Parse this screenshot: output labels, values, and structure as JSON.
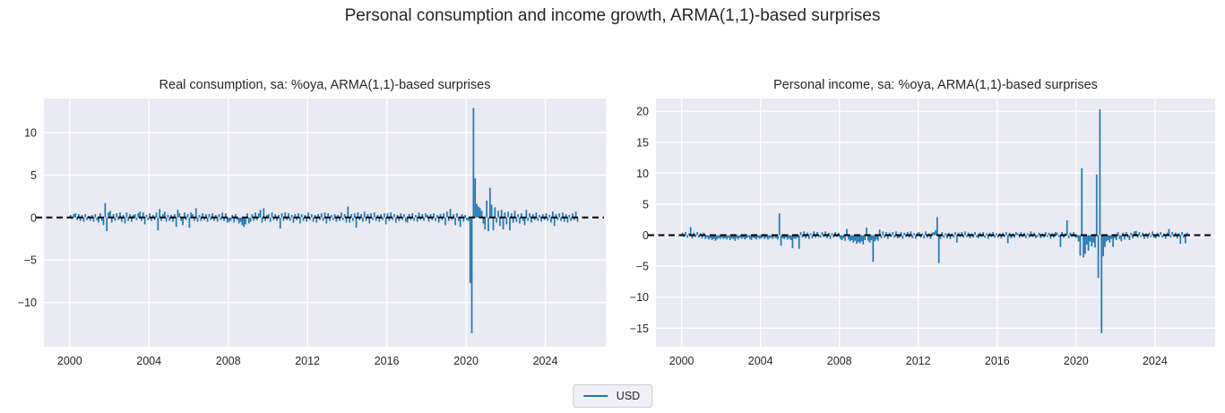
{
  "page": {
    "title": "Personal consumption and income growth, ARMA(1,1)-based surprises"
  },
  "legend": {
    "label": "USD"
  },
  "colors": {
    "bar": "#1f77b4",
    "plot_bg": "#eaeaf2",
    "grid": "#ffffff",
    "zero_line": "#000000",
    "text": "#262626",
    "legend_bg": "#f0f1f8",
    "legend_border": "#cccccc"
  },
  "chart_data": {
    "type": "bar",
    "freq": "monthly",
    "start": "2000-01",
    "end": "2025-08",
    "series_name": "USD",
    "legend_position": "lower center",
    "grid": true,
    "xticks": [
      2000,
      2004,
      2008,
      2012,
      2016,
      2020,
      2024
    ],
    "xlim": [
      1998.7,
      2027.05
    ],
    "zero_line": "dashed-black",
    "panels": [
      {
        "title": "Real consumption, sa: %oya, ARMA(1,1)-based surprises",
        "ylim": [
          -15.2,
          14.0
        ],
        "yticks": [
          -10,
          -5,
          0,
          5,
          10
        ],
        "values": [
          0.3,
          -0.2,
          0.4,
          0.5,
          -0.3,
          0.4,
          -0.4,
          0.3,
          -0.5,
          0.4,
          -0.3,
          0.2,
          -0.4,
          0.3,
          -0.5,
          0.4,
          -0.3,
          -0.6,
          0.5,
          -0.4,
          -0.9,
          1.7,
          -1.6,
          0.6,
          0.8,
          -0.6,
          0.4,
          -0.4,
          0.5,
          -0.3,
          0.6,
          -0.5,
          0.3,
          -0.7,
          0.6,
          -0.4,
          0.4,
          -0.5,
          0.3,
          0.4,
          -0.3,
          0.5,
          0.7,
          -0.4,
          0.6,
          -0.8,
          0.3,
          -0.3,
          0.5,
          -0.4,
          0.3,
          -0.3,
          0.6,
          -1.5,
          1.0,
          -0.4,
          0.4,
          0.7,
          -0.5,
          0.3,
          -0.4,
          0.3,
          -0.5,
          0.4,
          -1.1,
          0.9,
          0.5,
          -0.4,
          -0.9,
          0.6,
          -0.3,
          0.4,
          -1.2,
          0.6,
          0.4,
          -0.4,
          1.1,
          -0.5,
          0.3,
          -0.4,
          0.5,
          -0.3,
          0.4,
          -0.5,
          0.4,
          -0.3,
          0.5,
          -0.4,
          0.3,
          -0.5,
          0.4,
          -0.3,
          0.6,
          -0.4,
          0.5,
          -0.6,
          -0.5,
          -0.4,
          0.3,
          -0.6,
          0.4,
          -0.3,
          -0.7,
          -0.5,
          -0.9,
          -1.1,
          -0.8,
          0.5,
          -0.7,
          -0.5,
          0.4,
          -0.4,
          0.6,
          -0.3,
          0.5,
          0.9,
          -0.6,
          1.1,
          -0.4,
          0.3,
          0.4,
          -0.5,
          0.6,
          -0.3,
          0.4,
          -0.4,
          0.3,
          -1.3,
          0.5,
          -0.4,
          0.6,
          -0.3,
          0.5,
          -0.4,
          0.3,
          -0.6,
          0.4,
          -0.3,
          0.5,
          -0.7,
          0.4,
          -0.4,
          0.3,
          -0.5,
          0.6,
          -0.3,
          0.4,
          -0.5,
          0.3,
          -0.6,
          0.4,
          -0.3,
          0.5,
          -0.4,
          0.6,
          -0.7,
          0.5,
          -0.4,
          0.3,
          -0.3,
          0.4,
          -0.5,
          0.3,
          -0.4,
          0.6,
          -0.3,
          0.4,
          -0.6,
          1.3,
          -0.6,
          0.4,
          -0.4,
          0.5,
          -1.2,
          0.6,
          -0.3,
          0.4,
          -0.5,
          0.7,
          -0.4,
          0.4,
          -0.7,
          0.5,
          -0.3,
          0.6,
          -0.4,
          0.3,
          -0.5,
          0.4,
          -0.3,
          0.5,
          -0.8,
          0.5,
          -0.4,
          0.6,
          -0.3,
          0.4,
          -0.6,
          0.3,
          -0.4,
          0.5,
          -0.3,
          0.4,
          -0.5,
          -0.6,
          0.4,
          -0.3,
          0.5,
          -0.4,
          0.3,
          -0.5,
          0.6,
          -0.3,
          0.4,
          -0.4,
          0.5,
          0.3,
          -0.5,
          0.4,
          -0.3,
          0.5,
          -0.4,
          0.3,
          -0.6,
          0.4,
          -0.3,
          0.5,
          -0.9,
          0.7,
          -0.4,
          1.0,
          -0.3,
          0.4,
          -0.9,
          0.5,
          -0.4,
          -1.1,
          0.4,
          -0.5,
          0.3,
          -0.3,
          -0.4,
          -7.7,
          -13.6,
          12.9,
          4.6,
          1.6,
          1.3,
          1.1,
          0.8,
          -0.7,
          -1.4,
          2.0,
          -1.6,
          3.5,
          1.5,
          -1.5,
          1.2,
          -0.6,
          0.8,
          -1.0,
          0.9,
          -1.4,
          0.6,
          -0.8,
          0.7,
          -1.5,
          0.5,
          -0.6,
          0.8,
          -0.5,
          0.4,
          -0.7,
          0.5,
          -0.4,
          -0.9,
          0.9,
          -0.4,
          0.5,
          -0.6,
          0.4,
          -0.3,
          0.6,
          -0.4,
          0.3,
          -0.5,
          0.4,
          -0.3,
          0.5,
          -0.4,
          0.3,
          -0.6,
          0.7,
          -1.0,
          0.4,
          -0.3,
          0.5,
          -0.4,
          0.6,
          -0.5,
          0.4,
          -0.6,
          0.3,
          -0.4,
          0.5,
          -0.3,
          0.7,
          -0.5
        ]
      },
      {
        "title": "Personal income, sa: %oya, ARMA(1,1)-based surprises",
        "ylim": [
          -18.0,
          22.05
        ],
        "yticks": [
          -15,
          -10,
          -5,
          0,
          5,
          10,
          15,
          20
        ],
        "values": [
          0.4,
          -0.3,
          0.5,
          -0.4,
          0.3,
          1.3,
          -0.5,
          0.4,
          -0.3,
          0.5,
          -0.4,
          0.3,
          -0.5,
          0.4,
          -0.6,
          -0.4,
          -0.7,
          -0.5,
          -0.8,
          -0.6,
          -0.9,
          -0.7,
          -0.5,
          -0.6,
          -0.4,
          -0.6,
          -0.5,
          -0.7,
          -0.4,
          -0.8,
          -0.5,
          -0.6,
          -0.9,
          -0.5,
          -0.7,
          -0.4,
          -0.6,
          -0.4,
          -0.7,
          -0.5,
          -0.3,
          -0.6,
          -0.8,
          -0.4,
          -0.5,
          -0.7,
          -0.4,
          -0.6,
          -0.5,
          -0.3,
          -0.6,
          -0.4,
          -0.7,
          -0.5,
          -0.4,
          -0.6,
          -0.3,
          -0.5,
          -0.7,
          3.5,
          -1.7,
          -0.5,
          -0.6,
          -0.4,
          -0.7,
          -0.5,
          -0.8,
          -2.1,
          -0.5,
          -0.6,
          -0.4,
          -2.2,
          0.5,
          -0.4,
          0.6,
          -0.5,
          0.4,
          -0.6,
          0.3,
          -0.5,
          0.6,
          -0.4,
          0.5,
          -0.3,
          -0.4,
          0.5,
          -0.3,
          0.6,
          -0.5,
          0.4,
          -0.6,
          0.3,
          -0.4,
          0.5,
          -0.3,
          0.4,
          -0.6,
          -0.8,
          -0.5,
          -0.9,
          1.0,
          -0.7,
          -1.0,
          -0.8,
          -1.2,
          -0.9,
          -1.4,
          -1.1,
          -1.3,
          -1.0,
          -1.5,
          -0.8,
          1.2,
          -0.9,
          -1.2,
          -0.8,
          -4.3,
          -1.0,
          -0.7,
          -0.9,
          0.9,
          -0.5,
          0.6,
          -0.4,
          0.5,
          -0.6,
          0.4,
          -0.3,
          0.5,
          -0.4,
          0.6,
          -0.5,
          -0.4,
          0.5,
          -0.6,
          0.4,
          -0.3,
          0.5,
          -0.4,
          0.6,
          -0.5,
          0.3,
          -0.6,
          0.4,
          0.5,
          -0.4,
          0.3,
          -0.5,
          0.6,
          -0.4,
          0.3,
          -0.6,
          0.4,
          0.5,
          0.8,
          2.9,
          -4.5,
          -0.6,
          0.5,
          -0.4,
          0.3,
          -0.5,
          0.4,
          -0.6,
          0.3,
          -0.4,
          0.5,
          -1.2,
          0.4,
          -0.3,
          0.5,
          -0.4,
          0.6,
          -0.3,
          0.4,
          -0.5,
          0.3,
          -0.4,
          0.5,
          -0.3,
          -0.5,
          0.4,
          -0.3,
          0.5,
          -0.4,
          0.3,
          -0.6,
          0.4,
          -0.3,
          0.5,
          -0.4,
          0.3,
          -0.4,
          0.3,
          -0.5,
          0.4,
          -0.3,
          0.5,
          -1.3,
          0.4,
          -0.5,
          0.3,
          -0.4,
          0.5,
          0.3,
          -0.4,
          0.5,
          -0.3,
          0.4,
          -0.5,
          0.3,
          -0.4,
          0.6,
          -0.3,
          0.4,
          -0.5,
          -0.3,
          0.4,
          -0.5,
          0.3,
          -0.4,
          0.5,
          -0.3,
          0.4,
          -0.6,
          0.3,
          -0.4,
          0.5,
          0.4,
          -0.3,
          -1.9,
          0.5,
          -0.4,
          0.3,
          2.4,
          -0.5,
          0.4,
          -0.3,
          0.5,
          -0.4,
          -0.4,
          -1.0,
          -3.3,
          10.8,
          -3.6,
          -3.0,
          -1.5,
          -2.5,
          -1.0,
          -1.8,
          -1.2,
          -2.0,
          9.8,
          -6.9,
          20.3,
          -15.8,
          -3.4,
          -1.9,
          -1.0,
          -0.8,
          -1.2,
          -0.6,
          -1.9,
          -0.5,
          -0.8,
          0.5,
          -0.6,
          -1.0,
          0.4,
          -0.7,
          0.5,
          -0.4,
          -0.8,
          0.4,
          -0.5,
          0.6,
          0.7,
          -0.4,
          0.5,
          -0.3,
          0.4,
          -0.6,
          0.3,
          -0.5,
          0.4,
          -0.3,
          0.6,
          -0.4,
          -0.5,
          0.4,
          -0.3,
          0.5,
          -0.4,
          0.3,
          -0.6,
          0.4,
          1.0,
          -0.4,
          0.5,
          -0.3,
          0.4,
          -0.5,
          0.3,
          -1.4,
          0.5,
          -0.4,
          -1.3,
          0.4
        ]
      }
    ]
  }
}
